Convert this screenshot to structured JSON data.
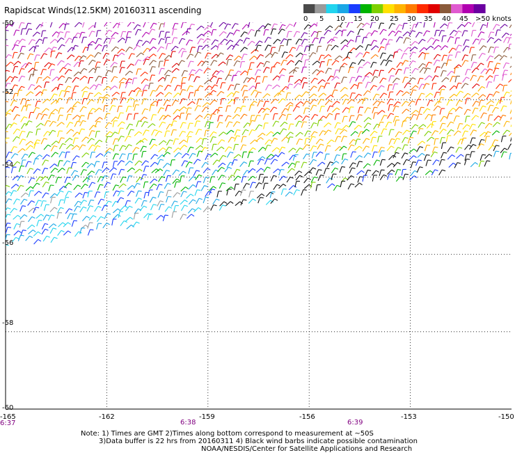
{
  "title": "Rapidscat Winds(12.5KM) 20160311 ascending",
  "legend": {
    "labels": [
      "0",
      "5",
      "10",
      "15",
      "20",
      "25",
      "30",
      "35",
      "40",
      "45",
      ">50 knots"
    ],
    "colors": [
      "#4a4a4a",
      "#9a9a9a",
      "#22d4ee",
      "#1aa7e6",
      "#1a3cff",
      "#00b400",
      "#7ed000",
      "#ffe000",
      "#ffb300",
      "#ff7a00",
      "#ff2a00",
      "#e00000",
      "#8a5a3a",
      "#e05ad0",
      "#b000b0",
      "#6a00a0"
    ]
  },
  "axes": {
    "x_ticks": [
      "-165",
      "-162",
      "-159",
      "-156",
      "-153",
      "-150"
    ],
    "y_ticks": [
      "-50",
      "-52",
      "-54",
      "-56",
      "-58",
      "-60"
    ],
    "x_range": [
      -165,
      -150
    ],
    "y_range": [
      -60,
      -50
    ]
  },
  "times": [
    "6:37",
    "6:38",
    "6:39"
  ],
  "notes": [
    "Note: 1) Times are GMT 2)Times along bottom correspond to measurement at ~50S",
    "3)Data buffer is 22 hrs from 20160311 4) Black wind barbs indicate possible contamination",
    "NOAA/NESDIS/Center for Satellite Applications and Research"
  ]
}
